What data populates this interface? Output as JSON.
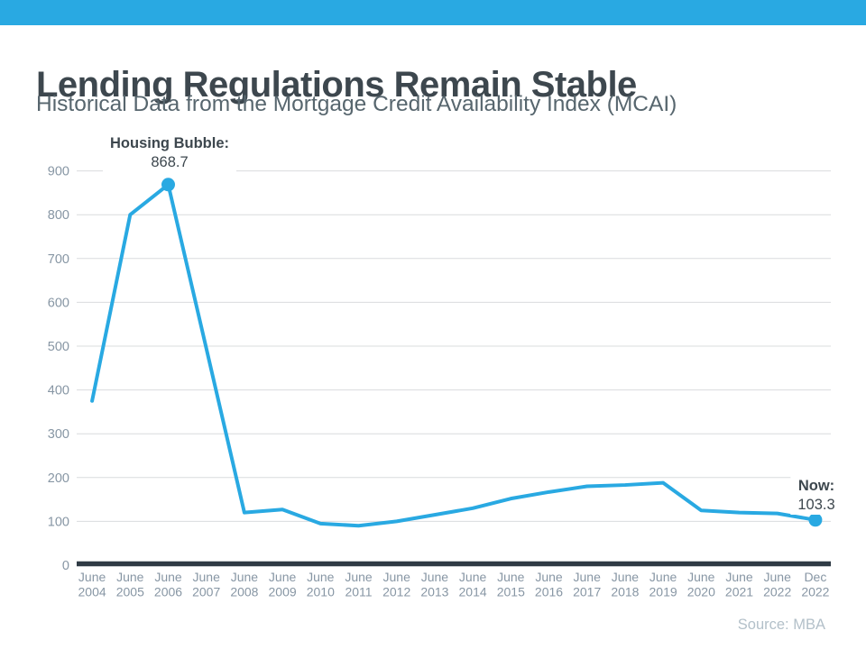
{
  "chart_data": {
    "type": "line",
    "title": "Lending Regulations Remain Stable",
    "subtitle": "Historical Data from the Mortgage Credit Availability Index (MCAI)",
    "source": "Source: MBA",
    "series_name": "Mortgage Credit Availability Index (MCAI)",
    "categories": [
      [
        "June",
        "2004"
      ],
      [
        "June",
        "2005"
      ],
      [
        "June",
        "2006"
      ],
      [
        "June",
        "2007"
      ],
      [
        "June",
        "2008"
      ],
      [
        "June",
        "2009"
      ],
      [
        "June",
        "2010"
      ],
      [
        "June",
        "2011"
      ],
      [
        "June",
        "2012"
      ],
      [
        "June",
        "2013"
      ],
      [
        "June",
        "2014"
      ],
      [
        "June",
        "2015"
      ],
      [
        "June",
        "2016"
      ],
      [
        "June",
        "2017"
      ],
      [
        "June",
        "2018"
      ],
      [
        "June",
        "2019"
      ],
      [
        "June",
        "2020"
      ],
      [
        "June",
        "2021"
      ],
      [
        "June",
        "2022"
      ],
      [
        "Dec",
        "2022"
      ]
    ],
    "values": [
      375,
      800,
      868.7,
      495,
      120,
      127,
      95,
      90,
      100,
      115,
      130,
      152,
      167,
      180,
      183,
      188,
      125,
      120,
      118,
      103.3
    ],
    "ylim": [
      0,
      900
    ],
    "yticks": [
      0,
      100,
      200,
      300,
      400,
      500,
      600,
      700,
      800,
      900
    ],
    "grid": true,
    "legend": "none",
    "line_color": "#29a9e2",
    "annotations": [
      {
        "key": "peak",
        "label": "Housing Bubble:",
        "value": "868.7",
        "index": 2
      },
      {
        "key": "now",
        "label": "Now:",
        "value": "103.3",
        "index": 19
      }
    ]
  },
  "colors": {
    "accent_blue": "#29a9e2",
    "title_text": "#3d474e",
    "subtitle_text": "#57666e",
    "axis_label_text": "#8796a4",
    "gridline": "#d9dcde",
    "axis_line": "#2f3b45",
    "source_text": "#b3c0c9"
  }
}
